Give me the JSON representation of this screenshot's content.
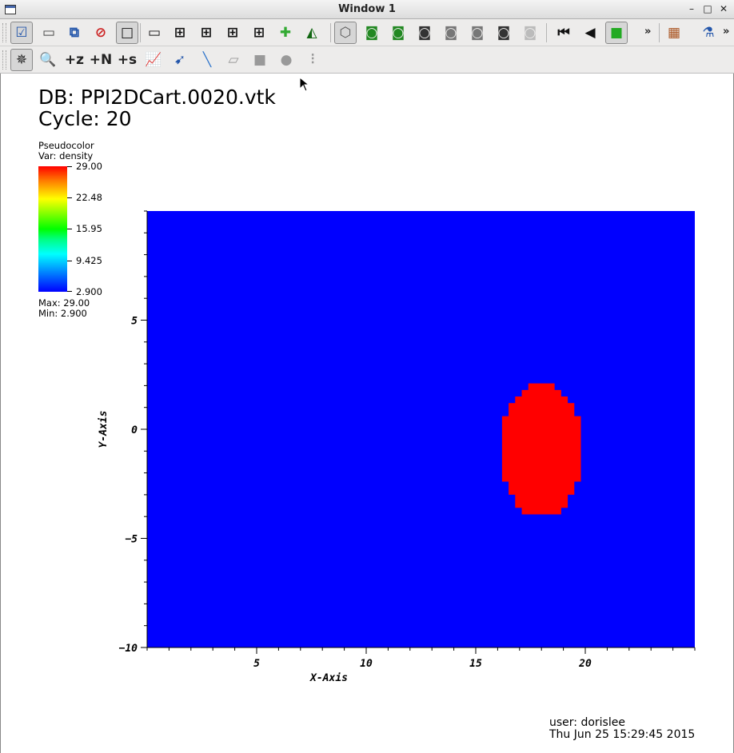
{
  "window": {
    "title": "Window 1",
    "min": "–",
    "max": "□",
    "close": "✕"
  },
  "toolbar1": [
    {
      "name": "toolbar-active-window-icon",
      "glyph": "☑",
      "color": "#2255aa"
    },
    {
      "name": "toolbar-new-window-icon",
      "glyph": "▭",
      "color": "#444"
    },
    {
      "name": "toolbar-clone-window-icon",
      "glyph": "⧉",
      "color": "#2255aa"
    },
    {
      "name": "toolbar-delete-window-icon",
      "glyph": "⊘",
      "color": "#cc2222"
    },
    {
      "name": "toolbar-layout-1x1-icon",
      "glyph": "□",
      "color": "#111"
    },
    {
      "name": "toolbar-layout-1x2-icon",
      "glyph": "▭",
      "color": "#111"
    },
    {
      "name": "toolbar-layout-2x2-icon",
      "glyph": "⊞",
      "color": "#111"
    },
    {
      "name": "toolbar-layout-2x3-icon",
      "glyph": "⊞",
      "color": "#111"
    },
    {
      "name": "toolbar-layout-2x4-icon",
      "glyph": "⊞",
      "color": "#111"
    },
    {
      "name": "toolbar-layout-3x3-icon",
      "glyph": "⊞",
      "color": "#111"
    },
    {
      "name": "toolbar-lock-view-icon",
      "glyph": "✚",
      "color": "#33aa33"
    },
    {
      "name": "toolbar-lock-time-icon",
      "glyph": "◭",
      "color": "#116611"
    },
    {
      "name": "toolbar-perspective-icon",
      "glyph": "⬡",
      "color": "#555"
    },
    {
      "name": "toolbar-camera-1-icon",
      "glyph": "◙",
      "color": "#228822"
    },
    {
      "name": "toolbar-camera-2-icon",
      "glyph": "◙",
      "color": "#228822"
    },
    {
      "name": "toolbar-camera-3-icon",
      "glyph": "◙",
      "color": "#333"
    },
    {
      "name": "toolbar-camera-4-icon",
      "glyph": "◙",
      "color": "#777"
    },
    {
      "name": "toolbar-camera-5-icon",
      "glyph": "◙",
      "color": "#777"
    },
    {
      "name": "toolbar-camera-6-icon",
      "glyph": "◙",
      "color": "#333"
    },
    {
      "name": "toolbar-camera-7-icon",
      "glyph": "◙",
      "color": "#bbb"
    },
    {
      "name": "toolbar-first-frame-icon",
      "glyph": "⏮",
      "color": "#111"
    },
    {
      "name": "toolbar-prev-frame-icon",
      "glyph": "◀",
      "color": "#111"
    },
    {
      "name": "toolbar-stop-icon",
      "glyph": "■",
      "color": "#22aa22"
    },
    {
      "name": "toolbar-palette-icon",
      "glyph": "▦",
      "color": "#aa5522"
    },
    {
      "name": "toolbar-inspect-icon",
      "glyph": "⚗",
      "color": "#2255aa"
    }
  ],
  "toolbar2": [
    {
      "name": "toolbar-navigate-icon",
      "glyph": "✵",
      "color": "#222"
    },
    {
      "name": "toolbar-zoom-icon",
      "glyph": "🔍",
      "color": "#222"
    },
    {
      "name": "toolbar-zone-pick-icon",
      "glyph": "+z",
      "color": "#222"
    },
    {
      "name": "toolbar-node-pick-icon",
      "glyph": "+N",
      "color": "#222"
    },
    {
      "name": "toolbar-spreadsheet-pick-icon",
      "glyph": "+s",
      "color": "#222"
    },
    {
      "name": "toolbar-curve-pick-icon",
      "glyph": "📈",
      "color": "#2255aa"
    },
    {
      "name": "toolbar-line-pick-icon",
      "glyph": "➹",
      "color": "#2255aa"
    },
    {
      "name": "toolbar-lineout-icon",
      "glyph": "╲",
      "color": "#3377cc"
    },
    {
      "name": "toolbar-plane-tool-icon",
      "glyph": "▱",
      "color": "#999"
    },
    {
      "name": "toolbar-box-tool-icon",
      "glyph": "■",
      "color": "#999"
    },
    {
      "name": "toolbar-sphere-tool-icon",
      "glyph": "●",
      "color": "#999"
    },
    {
      "name": "toolbar-sliders-icon",
      "glyph": "⫶",
      "color": "#999"
    }
  ],
  "annotation": {
    "db": "DB: PPI2DCart.0020.vtk",
    "cycle": "Cycle: 20"
  },
  "legend": {
    "type": "Pseudocolor",
    "var": "Var: density",
    "ticks": [
      "29.00",
      "22.48",
      "15.95",
      "9.425",
      "2.900"
    ],
    "max": "Max:  29.00",
    "min": "Min:  2.900"
  },
  "chart_data": {
    "type": "heatmap",
    "title": "PPI2DCart.0020.vtk",
    "variable": "density",
    "xlabel": "X-Axis",
    "ylabel": "Y-Axis",
    "xlim": [
      0.0,
      25.0
    ],
    "ylim": [
      -10.0,
      10.0
    ],
    "xticks": [
      5,
      10,
      15,
      20
    ],
    "yticks": [
      -10,
      -5,
      0,
      5
    ],
    "colormap_range": [
      2.9,
      29.0
    ],
    "background_value": 2.9,
    "features": [
      {
        "shape": "ellipse",
        "value": 29.0,
        "center": [
          18.0,
          -1.1
        ],
        "x_radius": 1.9,
        "y_radius": 3.1
      }
    ]
  },
  "footer": {
    "user": "user: dorislee",
    "date": "Thu Jun 25 15:29:45 2015"
  },
  "colors": {
    "plot_bg": "#0000ff",
    "feature": "#ff0000"
  }
}
